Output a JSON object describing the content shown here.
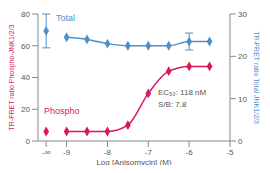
{
  "chart_data": {
    "type": "scatter",
    "x_label": "Log [Anisomycin] (M)",
    "y_label": "TR-FRET ratio Phospho-JNK1/2/3",
    "y2_label": "TR-FRET ratio Total JNK1/2/3",
    "x": [
      -9.5,
      -9,
      -8.5,
      -8,
      -7.5,
      -7,
      -6.5,
      -6,
      -5.5
    ],
    "xlim": [
      -9.7,
      -5
    ],
    "xticks": [
      {
        "value": -9.5,
        "label": "-∞"
      },
      -9,
      -8,
      -7,
      -6,
      -5
    ],
    "ylim": [
      0,
      80
    ],
    "yticks": [
      0,
      20,
      40,
      60,
      80
    ],
    "y2lim": [
      0,
      30
    ],
    "y2ticks": [
      0,
      10,
      20,
      30
    ],
    "series": [
      {
        "name": "Total",
        "color": "#4f8fc8",
        "axis": "y2",
        "marker": "diamond",
        "values": [
          26,
          24.5,
          24,
          23,
          22.5,
          22.5,
          22.5,
          23.5,
          23.5
        ],
        "error": [
          4,
          null,
          null,
          null,
          null,
          null,
          null,
          2,
          null
        ]
      },
      {
        "name": "Phospho",
        "color": "#d8175f",
        "axis": "y",
        "marker": "diamond",
        "values": [
          6,
          6,
          6,
          6,
          10,
          30,
          44,
          47,
          47
        ],
        "error": [
          null,
          null,
          null,
          null,
          null,
          null,
          null,
          null,
          null
        ]
      }
    ],
    "annotations": [
      "EC₅₀: 118 nM",
      "S/B: 7.8"
    ]
  }
}
